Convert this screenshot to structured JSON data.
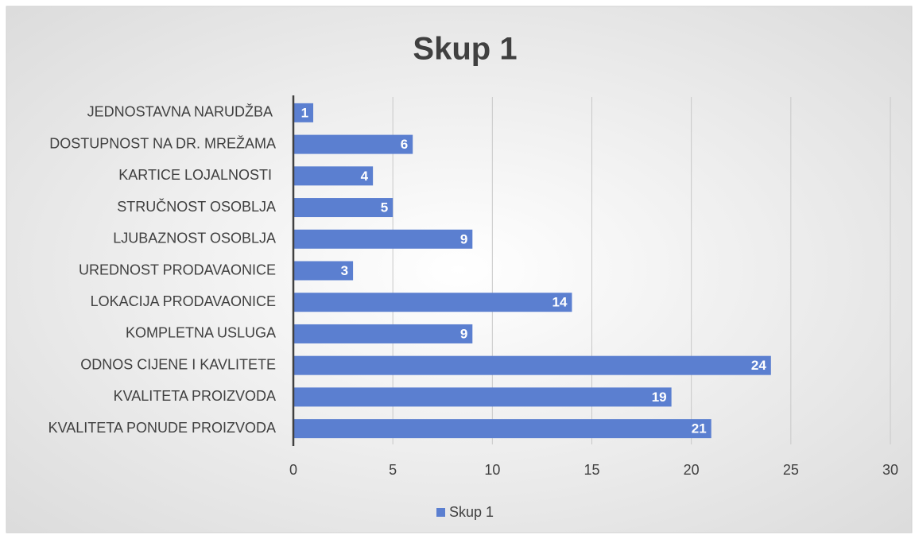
{
  "chart_data": {
    "type": "bar",
    "orientation": "horizontal",
    "title": "Skup 1",
    "categories": [
      "JEDNOSTAVNA NARUDŽBA ",
      "DOSTUPNOST NA DR. MREŽAMA",
      "KARTICE LOJALNOSTI ",
      "STRUČNOST OSOBLJA",
      "LJUBAZNOST OSOBLJA",
      "UREDNOST PRODAVAONICE",
      "LOKACIJA PRODAVAONICE",
      "KOMPLETNA USLUGA",
      "ODNOS CIJENE I KAVLITETE",
      "KVALITETA PROIZVODA",
      "KVALITETA PONUDE PROIZVODA"
    ],
    "series": [
      {
        "name": "Skup 1",
        "color": "#5b7fd0",
        "values": [
          1,
          6,
          4,
          5,
          9,
          3,
          14,
          9,
          24,
          19,
          21
        ]
      }
    ],
    "xlim": [
      0,
      30
    ],
    "xticks": [
      0,
      5,
      10,
      15,
      20,
      25,
      30
    ],
    "grid": true,
    "legend": "bottom"
  }
}
